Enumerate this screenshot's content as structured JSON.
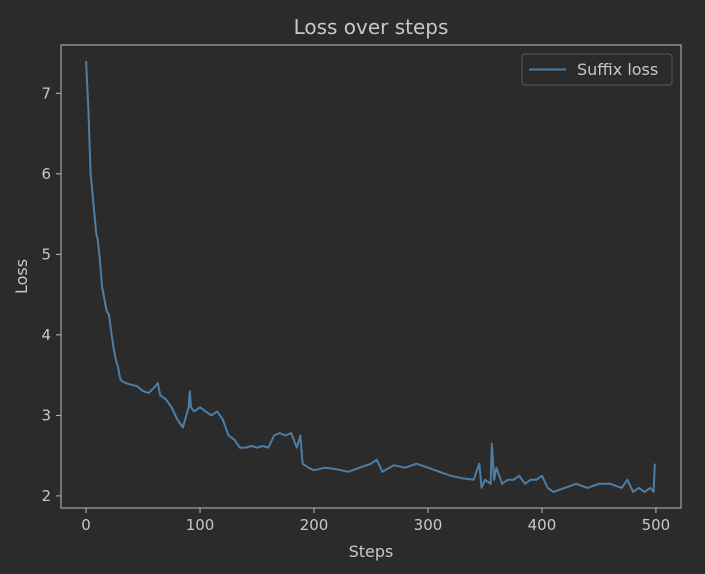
{
  "chart_data": {
    "type": "line",
    "title": "Loss over steps",
    "xlabel": "Steps",
    "ylabel": "Loss",
    "xlim": [
      -22,
      522
    ],
    "ylim": [
      1.85,
      7.6
    ],
    "x_ticks": [
      0,
      100,
      200,
      300,
      400,
      500
    ],
    "y_ticks": [
      2,
      3,
      4,
      5,
      6,
      7
    ],
    "grid": false,
    "legend_position": "top-right",
    "series": [
      {
        "name": "Suffix loss",
        "color": "#4c7ea6",
        "x": [
          0,
          2,
          4,
          6,
          8,
          9,
          10,
          12,
          14,
          16,
          18,
          20,
          22,
          24,
          26,
          28,
          30,
          32,
          35,
          40,
          45,
          50,
          55,
          60,
          63,
          65,
          70,
          75,
          80,
          85,
          90,
          91,
          92,
          95,
          100,
          105,
          110,
          115,
          120,
          125,
          130,
          135,
          140,
          145,
          150,
          155,
          160,
          165,
          170,
          175,
          180,
          185,
          188,
          190,
          195,
          200,
          210,
          220,
          230,
          240,
          250,
          255,
          260,
          270,
          280,
          290,
          300,
          310,
          320,
          330,
          340,
          345,
          347,
          350,
          355,
          356,
          358,
          360,
          365,
          370,
          375,
          380,
          385,
          390,
          395,
          400,
          405,
          410,
          420,
          430,
          440,
          450,
          460,
          470,
          475,
          480,
          485,
          490,
          495,
          498,
          499
        ],
        "values": [
          7.4,
          6.8,
          6.0,
          5.7,
          5.4,
          5.25,
          5.2,
          4.95,
          4.6,
          4.45,
          4.3,
          4.25,
          4.05,
          3.85,
          3.7,
          3.6,
          3.45,
          3.42,
          3.4,
          3.38,
          3.36,
          3.3,
          3.28,
          3.35,
          3.4,
          3.25,
          3.2,
          3.1,
          2.95,
          2.85,
          3.1,
          3.3,
          3.1,
          3.05,
          3.1,
          3.05,
          3.0,
          3.05,
          2.95,
          2.75,
          2.7,
          2.6,
          2.6,
          2.62,
          2.6,
          2.62,
          2.6,
          2.75,
          2.78,
          2.75,
          2.78,
          2.6,
          2.75,
          2.4,
          2.35,
          2.32,
          2.35,
          2.33,
          2.3,
          2.35,
          2.4,
          2.45,
          2.3,
          2.38,
          2.35,
          2.4,
          2.35,
          2.3,
          2.25,
          2.22,
          2.2,
          2.4,
          2.1,
          2.2,
          2.15,
          2.65,
          2.2,
          2.35,
          2.15,
          2.2,
          2.2,
          2.25,
          2.15,
          2.2,
          2.2,
          2.25,
          2.1,
          2.05,
          2.1,
          2.15,
          2.1,
          2.15,
          2.15,
          2.1,
          2.2,
          2.05,
          2.1,
          2.05,
          2.1,
          2.05,
          2.4
        ]
      }
    ]
  }
}
